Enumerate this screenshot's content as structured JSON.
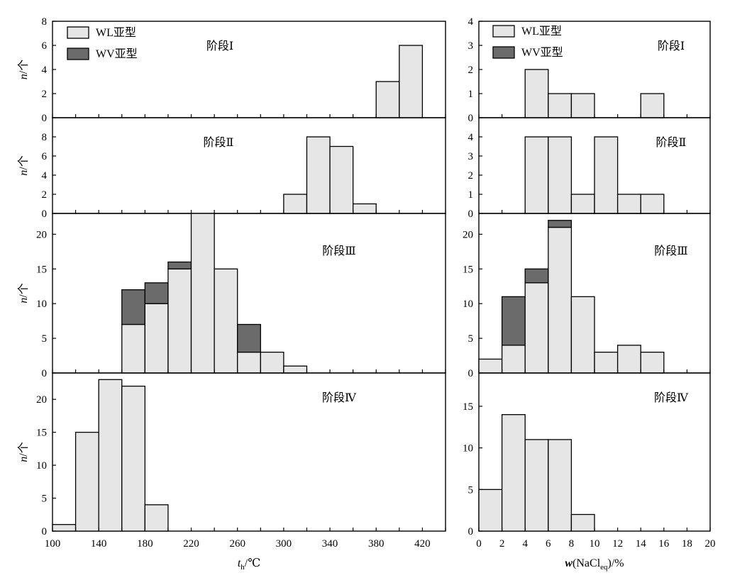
{
  "figure": {
    "colors": {
      "wl": "#e6e6e6",
      "wv": "#6b6b6b",
      "stroke": "#000000"
    },
    "legend": {
      "wl": "WL亚型",
      "wv": "WV亚型"
    },
    "ylabel": {
      "var": "n",
      "unit": "/个"
    }
  },
  "chart_data": [
    {
      "type": "bar",
      "panel": "left",
      "title": "阶段Ⅰ",
      "xlim": [
        100,
        440
      ],
      "ylim": [
        0,
        8
      ],
      "yticks": [
        0,
        2,
        4,
        6,
        8
      ],
      "bin_edges": [
        380,
        400,
        420
      ],
      "series": [
        {
          "name": "WL亚型",
          "values": [
            3,
            6
          ]
        },
        {
          "name": "WV亚型",
          "values": [
            0,
            0
          ]
        }
      ]
    },
    {
      "type": "bar",
      "panel": "left",
      "title": "阶段Ⅱ",
      "xlim": [
        100,
        440
      ],
      "ylim": [
        0,
        10
      ],
      "yticks": [
        0,
        2,
        4,
        6,
        8
      ],
      "bin_edges": [
        300,
        320,
        340,
        360,
        380
      ],
      "series": [
        {
          "name": "WL亚型",
          "values": [
            2,
            8,
            7,
            1
          ]
        },
        {
          "name": "WV亚型",
          "values": [
            0,
            0,
            0,
            0
          ]
        }
      ]
    },
    {
      "type": "bar",
      "panel": "left",
      "title": "阶段Ⅲ",
      "xlim": [
        100,
        440
      ],
      "ylim": [
        0,
        23
      ],
      "yticks": [
        0,
        5,
        10,
        15,
        20
      ],
      "bin_edges": [
        160,
        180,
        200,
        220,
        240,
        260,
        280,
        300,
        320
      ],
      "series": [
        {
          "name": "WL亚型",
          "values": [
            7,
            10,
            15,
            23,
            15,
            3,
            3,
            1
          ]
        },
        {
          "name": "WV亚型",
          "values": [
            5,
            3,
            1,
            0,
            0,
            4,
            0,
            0
          ]
        }
      ]
    },
    {
      "type": "bar",
      "panel": "left",
      "title": "阶段Ⅳ",
      "xlim": [
        100,
        440
      ],
      "ylim": [
        0,
        24
      ],
      "yticks": [
        0,
        5,
        10,
        15,
        20
      ],
      "xticks": [
        100,
        140,
        180,
        220,
        260,
        300,
        340,
        380,
        420
      ],
      "xlabel": {
        "var": "t",
        "sub": "h",
        "unit": "/℃"
      },
      "bin_edges": [
        100,
        120,
        140,
        160,
        180,
        200
      ],
      "series": [
        {
          "name": "WL亚型",
          "values": [
            1,
            15,
            23,
            22,
            4
          ]
        },
        {
          "name": "WV亚型",
          "values": [
            0,
            0,
            0,
            0,
            0
          ]
        }
      ]
    },
    {
      "type": "bar",
      "panel": "right",
      "title": "阶段Ⅰ",
      "xlim": [
        0,
        20
      ],
      "ylim": [
        0,
        4
      ],
      "yticks": [
        0,
        1,
        2,
        3,
        4
      ],
      "bin_edges": [
        4,
        6,
        8,
        10,
        12,
        14,
        16
      ],
      "series": [
        {
          "name": "WL亚型",
          "values": [
            2,
            1,
            1,
            0,
            0,
            1
          ]
        },
        {
          "name": "WV亚型",
          "values": [
            0,
            0,
            0,
            0,
            0,
            0
          ]
        }
      ]
    },
    {
      "type": "bar",
      "panel": "right",
      "title": "阶段Ⅱ",
      "xlim": [
        0,
        20
      ],
      "ylim": [
        0,
        5
      ],
      "yticks": [
        0,
        1,
        2,
        3,
        4
      ],
      "bin_edges": [
        4,
        6,
        8,
        10,
        12,
        14,
        16
      ],
      "series": [
        {
          "name": "WL亚型",
          "values": [
            4,
            4,
            1,
            4,
            1,
            1
          ]
        },
        {
          "name": "WV亚型",
          "values": [
            0,
            0,
            0,
            0,
            0,
            0
          ]
        }
      ]
    },
    {
      "type": "bar",
      "panel": "right",
      "title": "阶段Ⅲ",
      "xlim": [
        0,
        20
      ],
      "ylim": [
        0,
        23
      ],
      "yticks": [
        0,
        5,
        10,
        15,
        20
      ],
      "bin_edges": [
        0,
        2,
        4,
        6,
        8,
        10,
        12,
        14,
        16
      ],
      "series": [
        {
          "name": "WL亚型",
          "values": [
            2,
            4,
            13,
            21,
            11,
            3,
            4,
            3
          ]
        },
        {
          "name": "WV亚型",
          "values": [
            0,
            7,
            2,
            1,
            0,
            0,
            0,
            0
          ]
        }
      ]
    },
    {
      "type": "bar",
      "panel": "right",
      "title": "阶段Ⅳ",
      "xlim": [
        0,
        20
      ],
      "ylim": [
        0,
        19
      ],
      "yticks": [
        0,
        5,
        10,
        15
      ],
      "xticks": [
        0,
        2,
        4,
        6,
        8,
        10,
        12,
        14,
        16,
        18,
        20
      ],
      "xlabel": {
        "var": "w",
        "prefix": "(NaCl",
        "sub": "eq",
        "suffix": ")/%"
      },
      "bin_edges": [
        0,
        2,
        4,
        6,
        8,
        10
      ],
      "series": [
        {
          "name": "WL亚型",
          "values": [
            5,
            14,
            11,
            11,
            2
          ]
        },
        {
          "name": "WV亚型",
          "values": [
            0,
            0,
            0,
            0,
            0
          ]
        }
      ]
    }
  ]
}
